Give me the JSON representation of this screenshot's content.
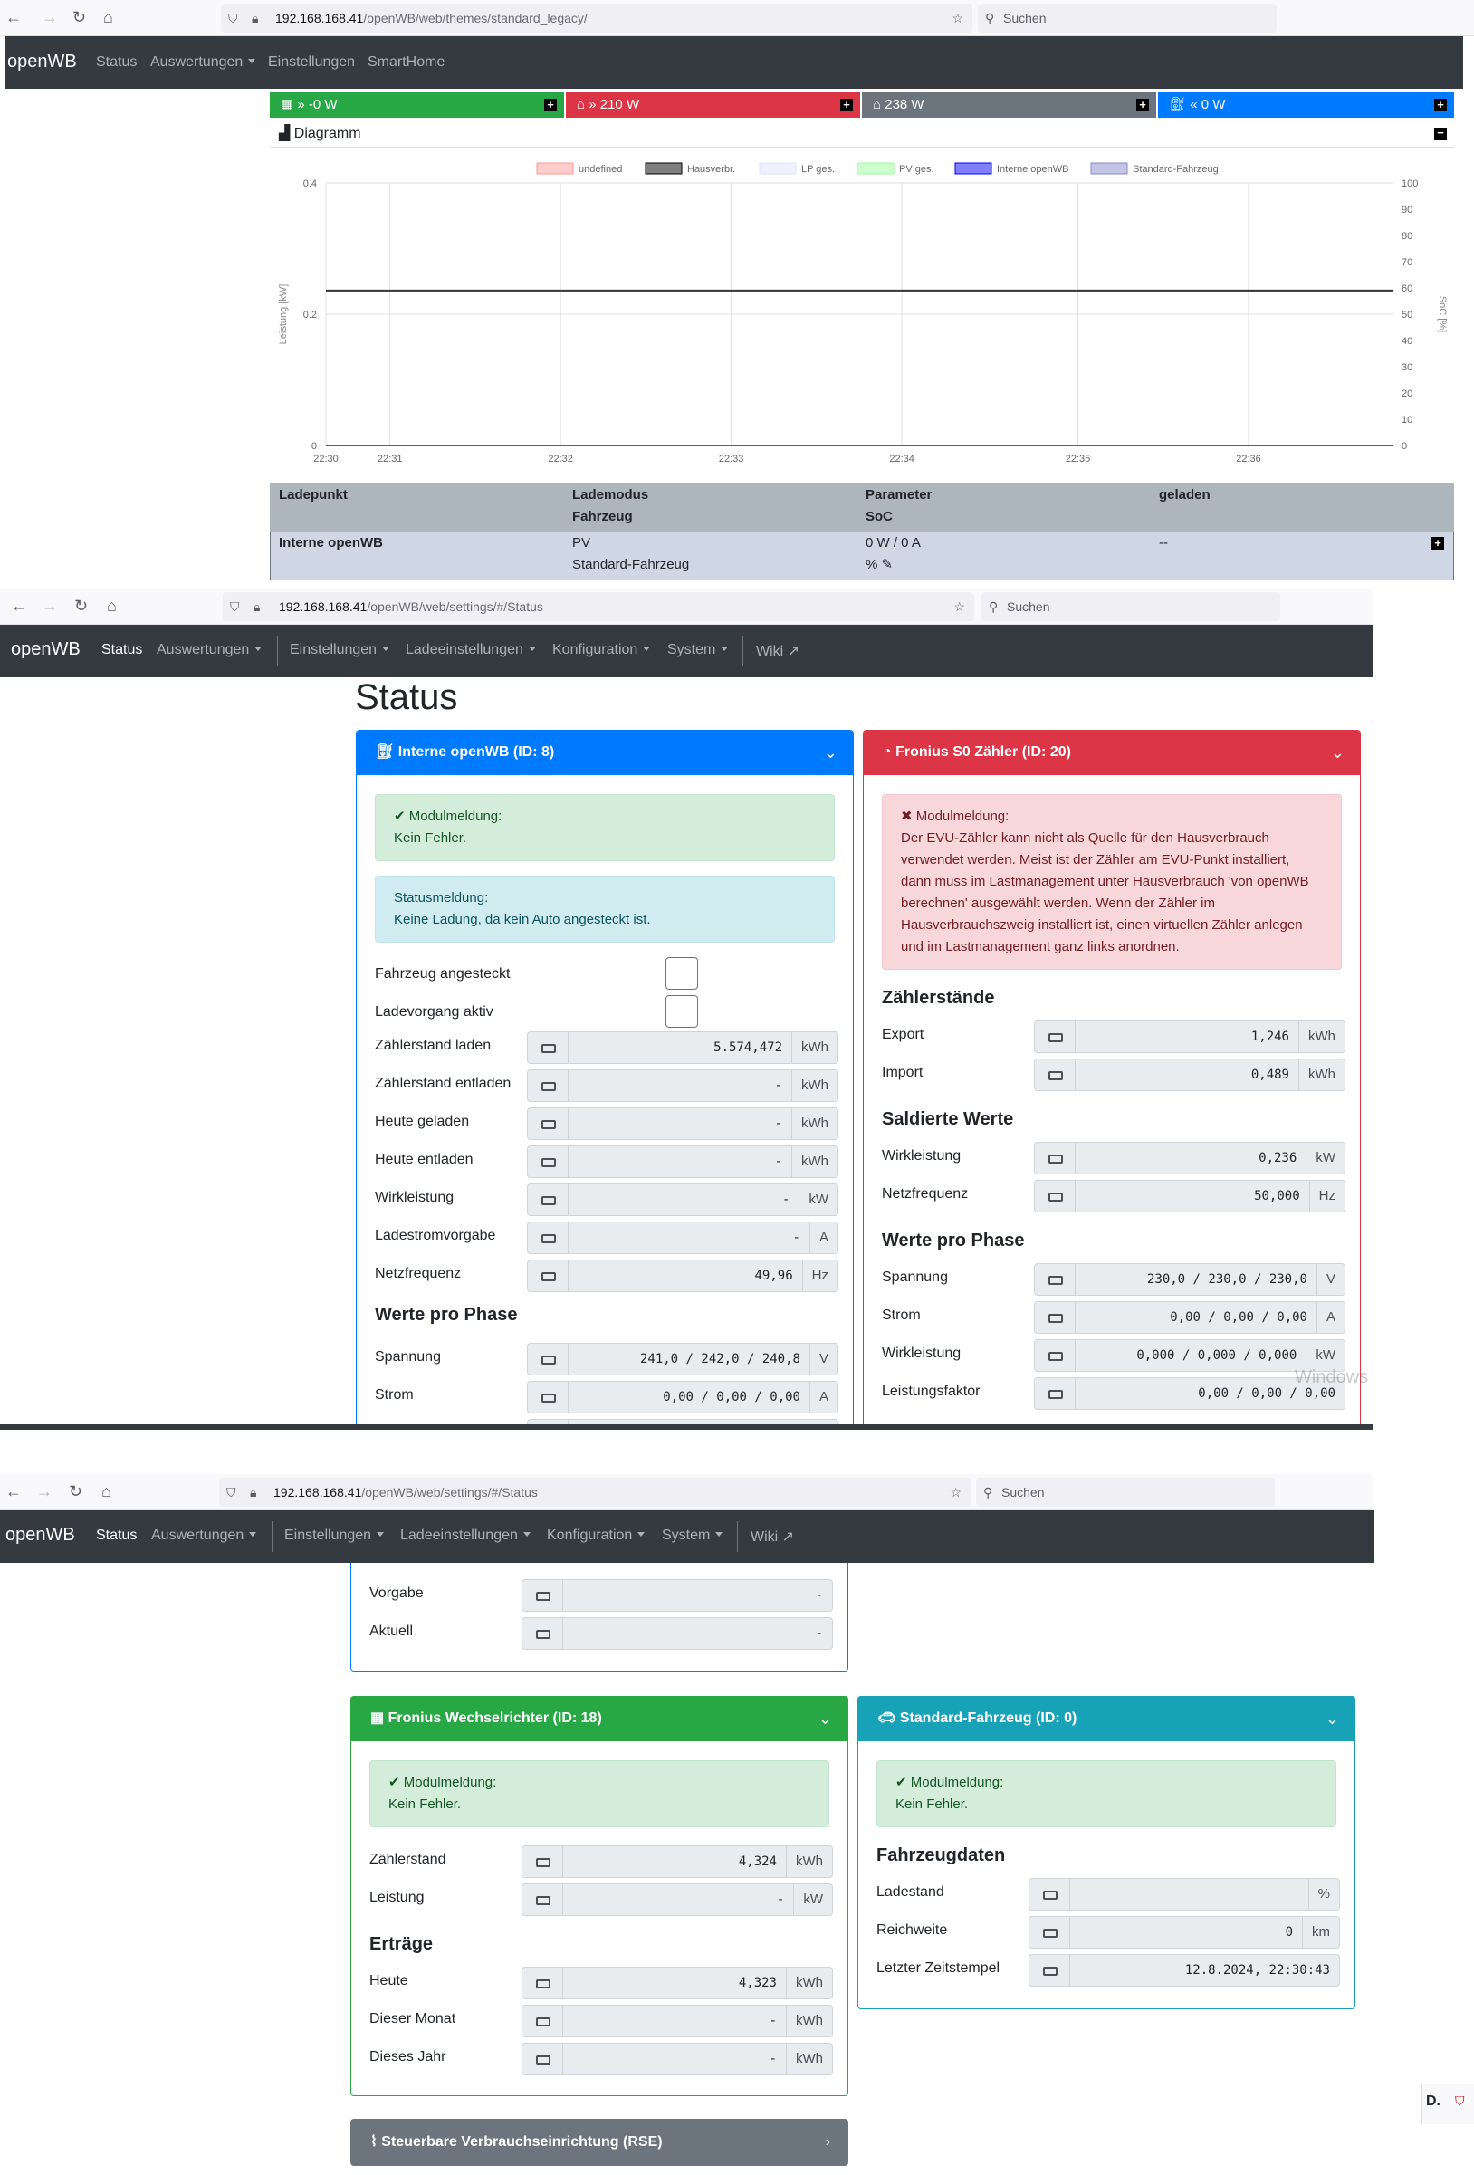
{
  "shot1": {
    "browser": {
      "url_host": "192.168.168.41",
      "url_path": "/openWB/web/themes/standard_legacy/",
      "search_placeholder": "Suchen"
    },
    "nav": {
      "brand": "openWB",
      "items": [
        "Status",
        "Auswertungen",
        "Einstellungen",
        "SmartHome"
      ]
    },
    "tiles": [
      {
        "label": "-0 W",
        "color": "#28a745"
      },
      {
        "label": "210 W",
        "color": "#dc3545"
      },
      {
        "label": "238 W",
        "color": "#6c757d"
      },
      {
        "label": "0 W",
        "color": "#007bff"
      }
    ],
    "diagram_title": "Diagramm",
    "chart_data": {
      "type": "line",
      "title": "",
      "legend": [
        "undefined",
        "Hausverbr.",
        "LP ges.",
        "PV ges.",
        "Interne openWB",
        "Standard-Fahrzeug"
      ],
      "legend_colors": [
        "#ff9999",
        "#000000",
        "#e0e0ff",
        "#99ff99",
        "#0000ff",
        "#8888cc"
      ],
      "ylabel": "Leistung [kW]",
      "y2label": "SoC [%]",
      "ylim": [
        0,
        0.4
      ],
      "y2lim": [
        0,
        100
      ],
      "yticks": [
        "0",
        "0.2",
        "0.4"
      ],
      "y2ticks": [
        "0",
        "10",
        "20",
        "30",
        "40",
        "50",
        "60",
        "70",
        "80",
        "90",
        "100"
      ],
      "xticks": [
        "22:30",
        "22:31",
        "22:32",
        "22:33",
        "22:34",
        "22:35",
        "22:36"
      ],
      "series": [
        {
          "name": "Hausverbr.",
          "values": [
            0.236,
            0.236
          ]
        },
        {
          "name": "Interne openWB",
          "values": [
            0,
            0
          ]
        }
      ],
      "grid": true,
      "legend_position": "top"
    },
    "table": {
      "headers": [
        [
          "Ladepunkt",
          ""
        ],
        [
          "Lademodus",
          "Fahrzeug"
        ],
        [
          "Parameter",
          "SoC"
        ],
        [
          "geladen",
          ""
        ]
      ],
      "row": {
        "name": "Interne openWB",
        "mode": "PV",
        "vehicle": "Standard-Fahrzeug",
        "param": "0 W / 0 A",
        "soc": "%",
        "charged": "--"
      }
    }
  },
  "shot2": {
    "browser": {
      "url_host": "192.168.168.41",
      "url_path": "/openWB/web/settings/#/Status",
      "search_placeholder": "Suchen"
    },
    "nav": {
      "brand": "openWB",
      "items": [
        "Status",
        "Auswertungen",
        "Einstellungen",
        "Ladeeinstellungen",
        "Konfiguration",
        "System",
        "Wiki"
      ]
    },
    "page_title": "Status",
    "card_lp": {
      "title": "Interne openWB (ID: 8)",
      "modul_title": "Modulmeldung:",
      "modul_text": "Kein Fehler.",
      "status_title": "Statusmeldung:",
      "status_text": "Keine Ladung, da kein Auto angesteckt ist.",
      "checks": [
        "Fahrzeug angesteckt",
        "Ladevorgang aktiv"
      ],
      "rows": [
        {
          "label": "Zählerstand laden",
          "value": "5.574,472",
          "unit": "kWh"
        },
        {
          "label": "Zählerstand entladen",
          "value": "-",
          "unit": "kWh"
        },
        {
          "label": "Heute geladen",
          "value": "-",
          "unit": "kWh"
        },
        {
          "label": "Heute entladen",
          "value": "-",
          "unit": "kWh"
        },
        {
          "label": "Wirkleistung",
          "value": "-",
          "unit": "kW"
        },
        {
          "label": "Ladestromvorgabe",
          "value": "-",
          "unit": "A"
        },
        {
          "label": "Netzfrequenz",
          "value": "49,96",
          "unit": "Hz"
        }
      ],
      "phase_title": "Werte pro Phase",
      "phase_rows": [
        {
          "label": "Spannung",
          "value": "241,0 / 242,0 / 240,8",
          "unit": "V"
        },
        {
          "label": "Strom",
          "value": "0,00 / 0,00 / 0,00",
          "unit": "A"
        }
      ]
    },
    "card_counter": {
      "title": "Fronius S0 Zähler (ID: 20)",
      "modul_title": "Modulmeldung:",
      "modul_text": "Der EVU-Zähler kann nicht als Quelle für den Hausverbrauch verwendet werden. Meist ist der Zähler am EVU-Punkt installiert, dann muss im Lastmanagement unter Hausverbrauch 'von openWB berechnen' ausgewählt werden. Wenn der Zähler im Hausverbrauchszweig installiert ist, einen virtuellen Zähler anlegen und im Lastmanagement ganz links anordnen.",
      "zs_title": "Zählerstände",
      "zs_rows": [
        {
          "label": "Export",
          "value": "1,246",
          "unit": "kWh"
        },
        {
          "label": "Import",
          "value": "0,489",
          "unit": "kWh"
        }
      ],
      "sw_title": "Saldierte Werte",
      "sw_rows": [
        {
          "label": "Wirkleistung",
          "value": "0,236",
          "unit": "kW"
        },
        {
          "label": "Netzfrequenz",
          "value": "50,000",
          "unit": "Hz"
        }
      ],
      "phase_title": "Werte pro Phase",
      "phase_rows": [
        {
          "label": "Spannung",
          "value": "230,0 / 230,0 / 230,0",
          "unit": "V"
        },
        {
          "label": "Strom",
          "value": "0,00 / 0,00 / 0,00",
          "unit": "A"
        },
        {
          "label": "Wirkleistung",
          "value": "0,000 / 0,000 / 0,000",
          "unit": "kW"
        },
        {
          "label": "Leistungsfaktor",
          "value": "0,00 / 0,00 / 0,00",
          "unit": ""
        }
      ]
    },
    "watermark": "Windows"
  },
  "shot3": {
    "browser": {
      "url_host": "192.168.168.41",
      "url_path": "/openWB/web/settings/#/Status",
      "search_placeholder": "Suchen"
    },
    "nav": {
      "brand": "openWB",
      "items": [
        "Status",
        "Auswertungen",
        "Einstellungen",
        "Ladeeinstellungen",
        "Konfiguration",
        "System",
        "Wiki"
      ]
    },
    "phasen_partial": {
      "rows": [
        {
          "label": "Vorgabe",
          "value": "-"
        },
        {
          "label": "Aktuell",
          "value": "-"
        }
      ]
    },
    "card_inverter": {
      "title": "Fronius Wechselrichter (ID: 18)",
      "modul_title": "Modulmeldung:",
      "modul_text": "Kein Fehler.",
      "rows": [
        {
          "label": "Zählerstand",
          "value": "4,324",
          "unit": "kWh"
        },
        {
          "label": "Leistung",
          "value": "-",
          "unit": "kW"
        }
      ],
      "ertraege_title": "Erträge",
      "ertraege_rows": [
        {
          "label": "Heute",
          "value": "4,323",
          "unit": "kWh"
        },
        {
          "label": "Dieser Monat",
          "value": "-",
          "unit": "kWh"
        },
        {
          "label": "Dieses Jahr",
          "value": "-",
          "unit": "kWh"
        }
      ]
    },
    "card_vehicle": {
      "title": "Standard-Fahrzeug (ID: 0)",
      "modul_title": "Modulmeldung:",
      "modul_text": "Kein Fehler.",
      "section_title": "Fahrzeugdaten",
      "rows": [
        {
          "label": "Ladestand",
          "value": "",
          "unit": "%"
        },
        {
          "label": "Reichweite",
          "value": "0",
          "unit": "km"
        },
        {
          "label": "Letzter Zeitstempel",
          "value": "12.8.2024, 22:30:43",
          "unit": ""
        }
      ]
    },
    "rse_title": "Steuerbare Verbrauchseinrichtung (RSE)"
  },
  "colors": {
    "primary": "#007bff",
    "danger": "#dc3545",
    "success": "#28a745",
    "info": "#17a2b8",
    "secondary": "#6c757d",
    "dark": "#343a40"
  }
}
